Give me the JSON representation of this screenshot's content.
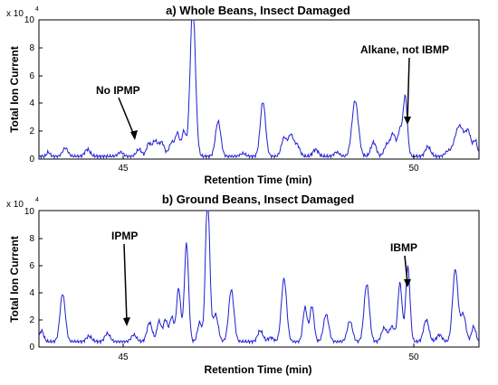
{
  "chart_data": [
    {
      "type": "line",
      "title": "a) Whole Beans, Insect Damaged",
      "xlabel": "Retention Time (min)",
      "ylabel": "Total Ion Current",
      "y_multiplier": "x 10",
      "y_exponent": "4",
      "xlim": [
        43.1,
        51.45
      ],
      "ylim": [
        0,
        10
      ],
      "x_ticks": [
        "45",
        "50"
      ],
      "y_ticks": [
        "0",
        "2",
        "4",
        "6",
        "8",
        "10"
      ],
      "annotations": [
        {
          "text": "No IPMP",
          "x": 45.5,
          "y": 1.2
        },
        {
          "text": "Alkane, not IBMP",
          "x": 49.87,
          "y": 2.2
        }
      ],
      "series": [
        {
          "peaks": [
            [
              43.28,
              0.3,
              0.03
            ],
            [
              43.6,
              0.6,
              0.05
            ],
            [
              44.02,
              0.5,
              0.05
            ],
            [
              44.65,
              0.3,
              0.05
            ],
            [
              45.0,
              0.5,
              0.05
            ],
            [
              45.18,
              0.9,
              0.04
            ],
            [
              45.3,
              1.1,
              0.05
            ],
            [
              45.43,
              1.0,
              0.05
            ],
            [
              45.62,
              1.0,
              0.05
            ],
            [
              45.73,
              1.6,
              0.04
            ],
            [
              45.85,
              1.8,
              0.04
            ],
            [
              46.02,
              11,
              0.05
            ],
            [
              46.5,
              2.5,
              0.05
            ],
            [
              46.97,
              0.2,
              0.05
            ],
            [
              47.35,
              3.9,
              0.05
            ],
            [
              47.75,
              1.3,
              0.05
            ],
            [
              47.88,
              1.5,
              0.05
            ],
            [
              48.0,
              0.8,
              0.05
            ],
            [
              48.35,
              0.5,
              0.05
            ],
            [
              48.75,
              0.3,
              0.05
            ],
            [
              49.1,
              4.0,
              0.06
            ],
            [
              49.45,
              1.0,
              0.05
            ],
            [
              49.7,
              0.8,
              0.05
            ],
            [
              49.82,
              1.6,
              0.05
            ],
            [
              49.95,
              1.8,
              0.04
            ],
            [
              50.05,
              4.3,
              0.04
            ],
            [
              50.48,
              0.7,
              0.05
            ],
            [
              50.85,
              0.3,
              0.05
            ],
            [
              51.08,
              2.2,
              0.09
            ],
            [
              51.25,
              1.5,
              0.05
            ],
            [
              51.38,
              1.1,
              0.04
            ]
          ],
          "baseline": 0.2
        }
      ]
    },
    {
      "type": "line",
      "title": "b) Ground Beans, Insect Damaged",
      "xlabel": "Retention Time (min)",
      "ylabel": "Total Ion Current",
      "y_multiplier": "x 10",
      "y_exponent": "4",
      "xlim": [
        43.1,
        51.45
      ],
      "ylim": [
        0,
        10
      ],
      "x_ticks": [
        "45",
        "50"
      ],
      "y_ticks": [
        "0",
        "2",
        "4",
        "6",
        "8",
        "10"
      ],
      "annotations": [
        {
          "text": "IPMP",
          "x": 45.48,
          "y": 1.4
        },
        {
          "text": "IBMP",
          "x": 49.8,
          "y": 4.2
        }
      ],
      "series": [
        {
          "peaks": [
            [
              43.15,
              0.8,
              0.04
            ],
            [
              43.55,
              3.5,
              0.05
            ],
            [
              44.05,
              0.4,
              0.05
            ],
            [
              44.4,
              0.6,
              0.05
            ],
            [
              44.9,
              0.5,
              0.05
            ],
            [
              45.2,
              1.4,
              0.05
            ],
            [
              45.38,
              1.5,
              0.04
            ],
            [
              45.5,
              1.6,
              0.04
            ],
            [
              45.62,
              1.8,
              0.04
            ],
            [
              45.75,
              3.9,
              0.04
            ],
            [
              45.9,
              7.2,
              0.04
            ],
            [
              46.15,
              1.4,
              0.04
            ],
            [
              46.3,
              11,
              0.04
            ],
            [
              46.45,
              2.0,
              0.05
            ],
            [
              46.75,
              3.8,
              0.05
            ],
            [
              47.3,
              0.8,
              0.05
            ],
            [
              47.5,
              0.3,
              0.05
            ],
            [
              47.75,
              4.6,
              0.05
            ],
            [
              48.15,
              2.5,
              0.04
            ],
            [
              48.28,
              2.6,
              0.04
            ],
            [
              48.55,
              2.0,
              0.05
            ],
            [
              49.0,
              1.5,
              0.05
            ],
            [
              49.32,
              4.2,
              0.05
            ],
            [
              49.65,
              1.0,
              0.05
            ],
            [
              49.8,
              1.1,
              0.05
            ],
            [
              49.95,
              4.3,
              0.04
            ],
            [
              50.1,
              5.5,
              0.04
            ],
            [
              50.45,
              1.6,
              0.05
            ],
            [
              50.7,
              0.5,
              0.05
            ],
            [
              51.0,
              5.3,
              0.05
            ],
            [
              51.15,
              2.0,
              0.05
            ],
            [
              51.35,
              1.1,
              0.04
            ]
          ],
          "baseline": 0.4
        }
      ]
    }
  ],
  "colors": {
    "trace": "#1f1fd0",
    "axis": "#000000"
  }
}
